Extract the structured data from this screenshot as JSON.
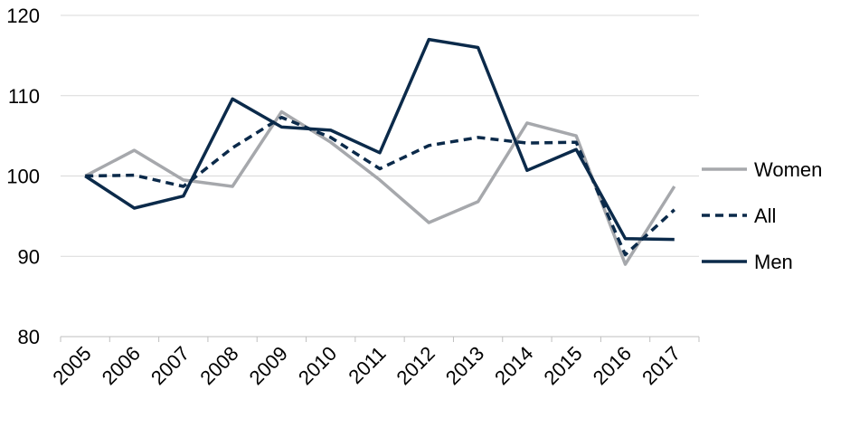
{
  "chart_data": {
    "type": "line",
    "title": "",
    "xlabel": "",
    "ylabel": "",
    "categories": [
      "2005",
      "2006",
      "2007",
      "2008",
      "2009",
      "2010",
      "2011",
      "2012",
      "2013",
      "2014",
      "2015",
      "2016",
      "2017"
    ],
    "ylim": [
      80,
      120
    ],
    "yticks": [
      80,
      90,
      100,
      110,
      120
    ],
    "grid": "horizontal",
    "legend_position": "right",
    "series": [
      {
        "name": "Women",
        "color": "#A6A8AC",
        "style": "solid",
        "values": [
          100,
          103.2,
          99.5,
          98.7,
          108.0,
          104.2,
          99.5,
          94.2,
          96.8,
          106.6,
          105.0,
          89.0,
          98.7
        ]
      },
      {
        "name": "All",
        "color": "#0B2A4A",
        "style": "dashed",
        "values": [
          100,
          100.1,
          98.7,
          103.5,
          107.3,
          104.8,
          100.9,
          103.8,
          104.8,
          104.1,
          104.2,
          90.2,
          95.8
        ]
      },
      {
        "name": "Men",
        "color": "#0B2A4A",
        "style": "solid",
        "values": [
          100,
          96.0,
          97.5,
          109.6,
          106.1,
          105.7,
          102.9,
          117.0,
          116.0,
          100.7,
          103.3,
          92.2,
          92.1
        ]
      }
    ]
  }
}
